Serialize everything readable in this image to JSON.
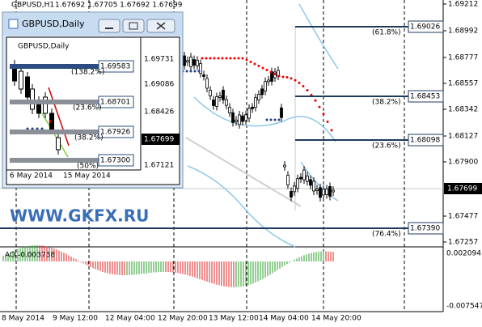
{
  "header": {
    "symbol": "GBPUSD,H1",
    "quote": "1.67692 1.67705 1.67692 1.67699"
  },
  "price_axis": [
    "1.69212",
    "1.68992",
    "1.68777",
    "1.68557",
    "1.68342",
    "1.68127",
    "1.67900",
    "1.67477",
    "1.67257"
  ],
  "current_price": "1.67699",
  "fib_levels": [
    {
      "percent": "(61.8%)",
      "price": "1.69026"
    },
    {
      "percent": "(38.2%)",
      "price": "1.68453"
    },
    {
      "percent": "(23.6%)",
      "price": "1.68098"
    },
    {
      "percent": "(76.4%)",
      "price": "1.67390"
    }
  ],
  "indicator": {
    "label": "AO -0.003738",
    "axis": [
      "0.002094",
      "-0.007547"
    ]
  },
  "time_axis": [
    "8 May 2014",
    "9 May 12:00",
    "12 May 04:00",
    "12 May 20:00",
    "13 May 12:00",
    "14 May 04:00",
    "14 May 20:00"
  ],
  "watermark": "WWW.GKFX.RU",
  "inset": {
    "title": "GBPUSD,Daily",
    "chart_label": "GBPUSD,Daily",
    "price_axis": [
      "1.69731",
      "1.69086",
      "1.68426",
      "1.67121"
    ],
    "current_price": "1.67699",
    "levels": [
      {
        "percent": "(138.2%)",
        "price": "1.69583"
      },
      {
        "percent": "(23.6%)",
        "price": "1.68701"
      },
      {
        "percent": "(38.2%)",
        "price": "1.67926"
      },
      {
        "percent": "(50%)",
        "price": "1.67300"
      }
    ],
    "dates": [
      "6 May 2014",
      "15 May 2014"
    ]
  }
}
